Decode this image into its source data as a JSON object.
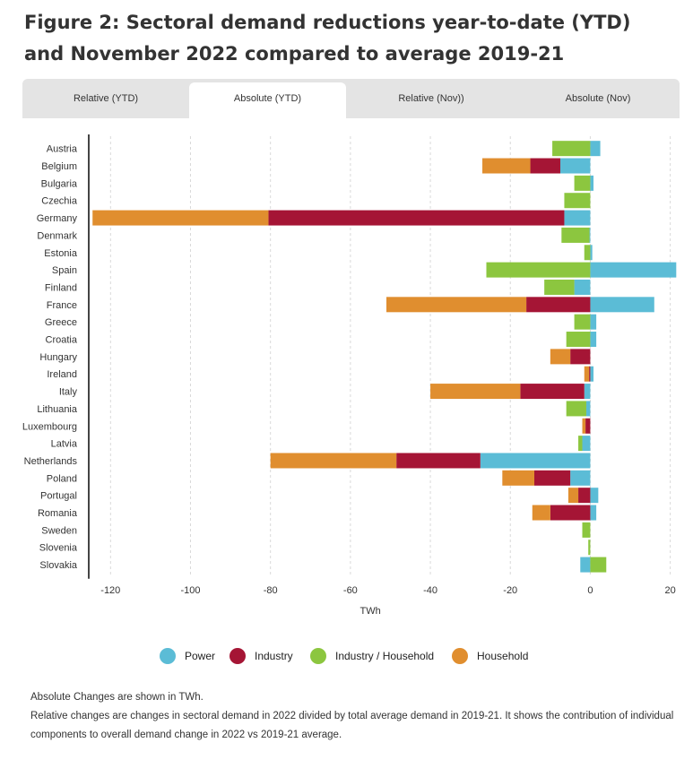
{
  "title": "Figure 2: Sectoral demand reductions year-to-date (YTD) and November 2022 compared to average 2019-21",
  "tabs": [
    {
      "label": "Relative (YTD)",
      "active": false
    },
    {
      "label": "Absolute (YTD)",
      "active": true
    },
    {
      "label": "Relative (Nov))",
      "active": false
    },
    {
      "label": "Absolute (Nov)",
      "active": false
    }
  ],
  "legend": [
    {
      "label": "Power",
      "color": "#5bbcd6"
    },
    {
      "label": "Industry",
      "color": "#a51535"
    },
    {
      "label": "Industry / Household",
      "color": "#8cc63f"
    },
    {
      "label": "Household",
      "color": "#e08e2f"
    }
  ],
  "notes": [
    "Absolute Changes are shown in TWh.",
    "Relative changes are changes in sectoral demand in 2022 divided by total average demand in 2019-21. It shows the contribution of individual components to overall demand change in 2022 vs 2019-21 average."
  ],
  "chart_data": {
    "type": "bar",
    "orientation": "horizontal",
    "stacked": true,
    "xlabel": "TWh",
    "ylabel": "",
    "xlim": [
      -125,
      23
    ],
    "xticks": [
      -120,
      -100,
      -80,
      -60,
      -40,
      -20,
      0,
      20
    ],
    "grid": "vertical dashed",
    "legend_position": "bottom",
    "categories": [
      "Austria",
      "Belgium",
      "Bulgaria",
      "Czechia",
      "Germany",
      "Denmark",
      "Estonia",
      "Spain",
      "Finland",
      "France",
      "Greece",
      "Croatia",
      "Hungary",
      "Ireland",
      "Italy",
      "Lithuania",
      "Luxembourg",
      "Latvia",
      "Netherlands",
      "Poland",
      "Portugal",
      "Romania",
      "Sweden",
      "Slovenia",
      "Slovakia"
    ],
    "series": [
      {
        "name": "Power",
        "color": "#5bbcd6",
        "values": [
          2.5,
          -7.5,
          0.8,
          0,
          -6.5,
          -0.2,
          0.5,
          21.5,
          -4,
          16,
          1.5,
          1.5,
          0,
          0.8,
          -1.5,
          -1,
          0,
          -2,
          -27.5,
          -5,
          2,
          1.5,
          0,
          0,
          -2.5
        ]
      },
      {
        "name": "Industry",
        "color": "#a51535",
        "values": [
          0,
          -7.5,
          0,
          0,
          -74,
          0,
          0,
          0,
          0,
          -16,
          0,
          0,
          -5,
          -0.3,
          -16,
          0,
          -1.2,
          0,
          -21,
          -9,
          -3,
          -10,
          0,
          0,
          0
        ]
      },
      {
        "name": "Industry / Household",
        "color": "#8cc63f",
        "values": [
          -9.5,
          0,
          -4,
          -6.5,
          0,
          -7,
          -1.5,
          -26,
          -7.5,
          0,
          -4,
          -6,
          0,
          0,
          0,
          -5,
          0,
          -1,
          0,
          0,
          0,
          0,
          -2,
          -0.5,
          4
        ]
      },
      {
        "name": "Household",
        "color": "#e08e2f",
        "values": [
          0,
          -12,
          0,
          0,
          -44,
          0,
          0,
          0,
          0,
          -35,
          0,
          0,
          -5,
          -1.2,
          -22.5,
          0,
          -0.8,
          0,
          -31.5,
          -8,
          -2.5,
          -4.5,
          0,
          0,
          0
        ]
      }
    ]
  }
}
